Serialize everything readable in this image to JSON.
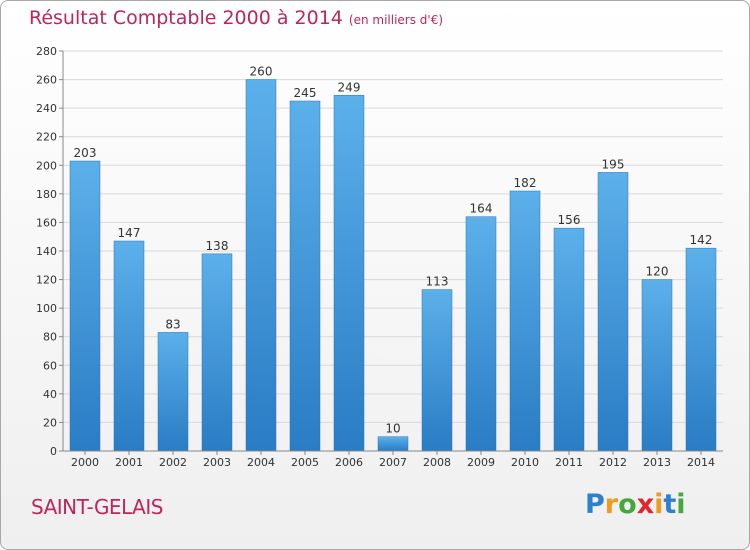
{
  "chart_data": {
    "type": "bar",
    "title": "Résultat Comptable 2000 à 2014",
    "subtitle": "(en milliers d'€)",
    "categories": [
      "2000",
      "2001",
      "2002",
      "2003",
      "2004",
      "2005",
      "2006",
      "2007",
      "2008",
      "2009",
      "2010",
      "2011",
      "2012",
      "2013",
      "2014"
    ],
    "values": [
      203,
      147,
      83,
      138,
      260,
      245,
      249,
      10,
      113,
      164,
      182,
      156,
      195,
      120,
      142
    ],
    "ylim": [
      0,
      280
    ],
    "ytick_step": 20,
    "grid": true,
    "xlabel": "",
    "ylabel": "",
    "bar_color": "#4a9fe0"
  },
  "place_name": "SAINT-GELAIS",
  "logo": {
    "letters": [
      "P",
      "r",
      "o",
      "x",
      "i",
      "t",
      "i"
    ],
    "colors": [
      "#2f7fd0",
      "#f29a1a",
      "#45a83a",
      "#e0262c",
      "#f29a1a",
      "#2f7fd0",
      "#45a83a"
    ]
  }
}
